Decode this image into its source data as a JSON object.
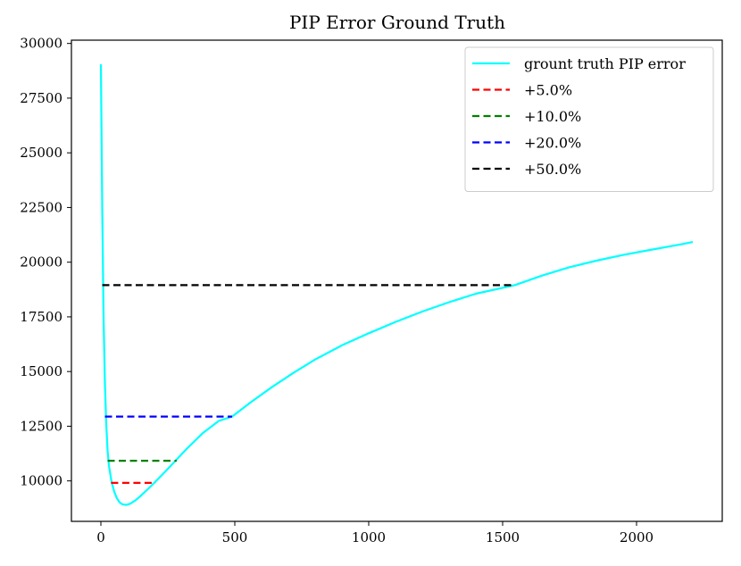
{
  "chart_data": {
    "type": "line",
    "title": "PIP Error Ground Truth",
    "xlabel": "",
    "ylabel": "",
    "xlim": [
      -110,
      2320
    ],
    "ylim": [
      8150,
      30150
    ],
    "grid": false,
    "legend_position": "top-right",
    "xticks": [
      0,
      500,
      1000,
      1500,
      2000
    ],
    "yticks": [
      10000,
      12500,
      15000,
      17500,
      20000,
      22500,
      25000,
      27500,
      30000
    ],
    "series": [
      {
        "name": "grount truth PIP error",
        "color": "#00ffff",
        "style": "solid",
        "x": [
          0,
          5,
          10,
          15,
          20,
          25,
          30,
          40,
          50,
          60,
          70,
          80,
          95,
          110,
          130,
          150,
          175,
          200,
          240,
          280,
          320,
          380,
          440,
          490,
          560,
          640,
          720,
          800,
          900,
          1000,
          1100,
          1200,
          1300,
          1400,
          1545,
          1650,
          1750,
          1850,
          1950,
          2050,
          2150,
          2210
        ],
        "y": [
          29050,
          22500,
          17500,
          14500,
          12600,
          11400,
          10700,
          9950,
          9500,
          9200,
          9020,
          8930,
          8900,
          8960,
          9120,
          9330,
          9620,
          9920,
          10420,
          10940,
          11460,
          12180,
          12740,
          12940,
          13600,
          14300,
          14950,
          15550,
          16200,
          16750,
          17270,
          17740,
          18170,
          18560,
          18950,
          19400,
          19770,
          20070,
          20330,
          20560,
          20780,
          20920
        ]
      },
      {
        "name": "+5.0%",
        "color": "#ff0000",
        "style": "dashed",
        "x": [
          38,
          205
        ],
        "y": [
          9910,
          9910
        ]
      },
      {
        "name": "+10.0%",
        "color": "#008000",
        "style": "dashed",
        "x": [
          25,
          283
        ],
        "y": [
          10920,
          10920
        ]
      },
      {
        "name": "+20.0%",
        "color": "#0000ff",
        "style": "dashed",
        "x": [
          15,
          490
        ],
        "y": [
          12940,
          12940
        ]
      },
      {
        "name": "+50.0%",
        "color": "#000000",
        "style": "dashed",
        "x": [
          5,
          1545
        ],
        "y": [
          18950,
          18950
        ]
      }
    ]
  }
}
